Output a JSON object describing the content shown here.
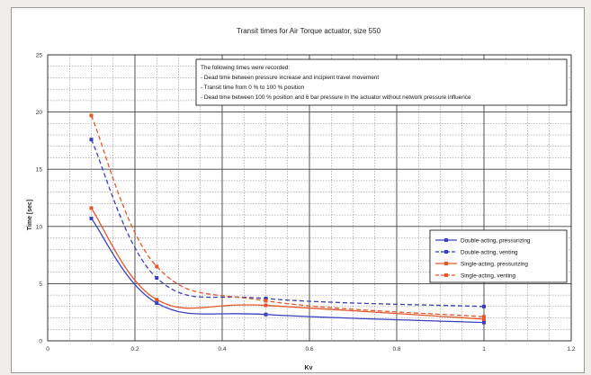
{
  "chart_data": {
    "type": "line",
    "title": "Transit times for Air Torque actuator, size 550",
    "xlabel": "Kv",
    "ylabel": "Time [sec]",
    "xlim": [
      0,
      1.2
    ],
    "ylim": [
      0,
      25
    ],
    "xticks": [
      "0",
      "0.2",
      "0.4",
      "0.6",
      "0.8",
      "1",
      "1.2"
    ],
    "yticks": [
      "0",
      "5",
      "10",
      "15",
      "20",
      "25"
    ],
    "grid": true,
    "legend_position": "right",
    "notes": [
      "The following times were recorded:",
      "- Dead time between pressure increase and incipient travel movement",
      "- Transit time from 0 % to 100 % position",
      "- Dead time between 100 % position and 6 bar pressure in the actuator without network pressure influence"
    ],
    "series": [
      {
        "name": "Double-acting, pressurizing",
        "color": "#3a3fbf",
        "dashed": false,
        "points": [
          [
            0.1,
            10.7
          ],
          [
            0.25,
            3.3
          ],
          [
            0.5,
            2.3
          ],
          [
            1.0,
            1.6
          ]
        ]
      },
      {
        "name": "Double-acting, venting",
        "color": "#3a3fbf",
        "dashed": true,
        "points": [
          [
            0.1,
            17.6
          ],
          [
            0.25,
            5.5
          ],
          [
            0.5,
            3.7
          ],
          [
            1.0,
            3.0
          ]
        ]
      },
      {
        "name": "Single-acting, pressurizing",
        "color": "#e5572b",
        "dashed": false,
        "points": [
          [
            0.1,
            11.6
          ],
          [
            0.25,
            3.6
          ],
          [
            0.5,
            3.1
          ],
          [
            1.0,
            1.9
          ]
        ]
      },
      {
        "name": "Single-acting, venting",
        "color": "#e5572b",
        "dashed": true,
        "points": [
          [
            0.1,
            19.7
          ],
          [
            0.25,
            6.5
          ],
          [
            0.5,
            3.5
          ],
          [
            1.0,
            2.1
          ]
        ]
      }
    ]
  }
}
